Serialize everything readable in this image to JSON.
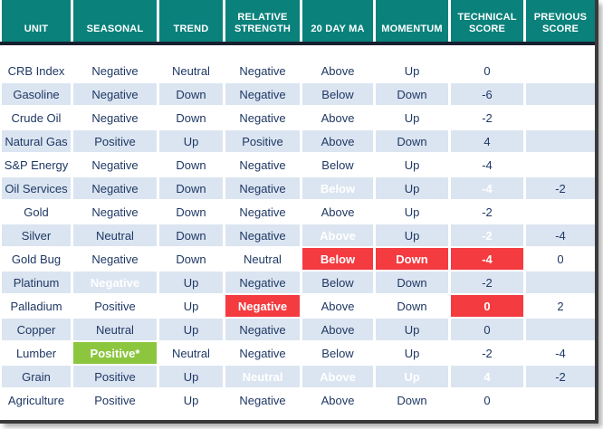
{
  "colors": {
    "header_bg": "#0a817b",
    "row_alt_bg": "#dbe5f1",
    "text_navy": "#1f3864",
    "highlight_red": "#f43b40",
    "highlight_green": "#8cc63f",
    "divider_dark": "#17202f"
  },
  "chart_data": {
    "type": "table",
    "columns": [
      "UNIT",
      "SEASONAL",
      "TREND",
      "RELATIVE STRENGTH",
      "20 DAY MA",
      "MOMENTUM",
      "TECHNICAL SCORE",
      "PREVIOUS SCORE"
    ],
    "rows": [
      {
        "cells": [
          "CRB Index",
          "Negative",
          "Neutral",
          "Negative",
          "Above",
          "Up",
          "0",
          ""
        ],
        "highlights": {}
      },
      {
        "cells": [
          "Gasoline",
          "Negative",
          "Down",
          "Negative",
          "Below",
          "Down",
          "-6",
          ""
        ],
        "highlights": {}
      },
      {
        "cells": [
          "Crude Oil",
          "Negative",
          "Down",
          "Negative",
          "Above",
          "Up",
          "-2",
          ""
        ],
        "highlights": {}
      },
      {
        "cells": [
          "Natural Gas",
          "Positive",
          "Up",
          "Positive",
          "Above",
          "Down",
          "4",
          ""
        ],
        "highlights": {}
      },
      {
        "cells": [
          "S&P Energy",
          "Negative",
          "Down",
          "Negative",
          "Below",
          "Up",
          "-4",
          ""
        ],
        "highlights": {}
      },
      {
        "cells": [
          "Oil Services",
          "Negative",
          "Down",
          "Negative",
          "Below",
          "Up",
          "-4",
          "-2"
        ],
        "highlights": {
          "4": "red",
          "6": "red"
        }
      },
      {
        "cells": [
          "Gold",
          "Negative",
          "Down",
          "Negative",
          "Above",
          "Up",
          "-2",
          ""
        ],
        "highlights": {}
      },
      {
        "cells": [
          "Silver",
          "Neutral",
          "Down",
          "Negative",
          "Above",
          "Up",
          "-2",
          "-4"
        ],
        "highlights": {
          "4": "green",
          "6": "green"
        }
      },
      {
        "cells": [
          "Gold Bug",
          "Negative",
          "Down",
          "Neutral",
          "Below",
          "Down",
          "-4",
          "0"
        ],
        "highlights": {
          "4": "red",
          "5": "red",
          "6": "red"
        }
      },
      {
        "cells": [
          "Platinum",
          "Negative",
          "Up",
          "Negative",
          "Below",
          "Down",
          "-2",
          ""
        ],
        "highlights": {
          "1": "red"
        }
      },
      {
        "cells": [
          "Palladium",
          "Positive",
          "Up",
          "Negative",
          "Above",
          "Down",
          "0",
          "2"
        ],
        "highlights": {
          "3": "red",
          "6": "red"
        }
      },
      {
        "cells": [
          "Copper",
          "Neutral",
          "Up",
          "Negative",
          "Above",
          "Up",
          "0",
          ""
        ],
        "highlights": {}
      },
      {
        "cells": [
          "Lumber",
          "Positive*",
          "Neutral",
          "Negative",
          "Below",
          "Up",
          "-2",
          "-4"
        ],
        "highlights": {
          "1": "green"
        }
      },
      {
        "cells": [
          "Grain",
          "Positive",
          "Up",
          "Neutral",
          "Above",
          "Up",
          "4",
          "-2"
        ],
        "highlights": {
          "3": "green",
          "4": "green",
          "5": "green",
          "6": "green"
        }
      },
      {
        "cells": [
          "Agriculture",
          "Positive",
          "Up",
          "Negative",
          "Above",
          "Down",
          "0",
          ""
        ],
        "highlights": {}
      }
    ]
  }
}
